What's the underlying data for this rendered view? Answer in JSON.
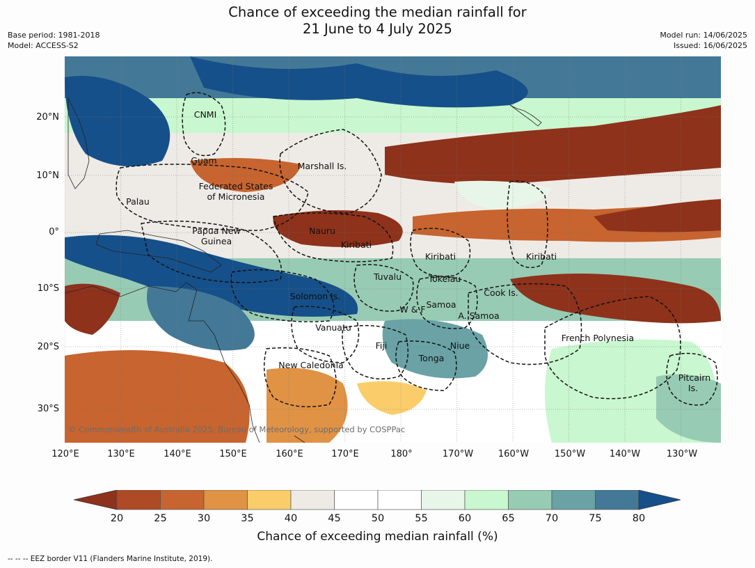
{
  "title": {
    "line1": "Chance of exceeding the median rainfall for",
    "line2": "21 June to 4 July 2025"
  },
  "meta": {
    "base_period": "Base period: 1981-2018",
    "model": "Model: ACCESS-S2",
    "model_run": "Model run: 14/06/2025",
    "issued": "Issued: 16/06/2025"
  },
  "axes": {
    "lat_labels": [
      "20°N",
      "10°N",
      "0°",
      "10°S",
      "20°S",
      "30°S"
    ],
    "lon_labels": [
      "120°E",
      "130°E",
      "140°E",
      "150°E",
      "160°E",
      "170°E",
      "180°",
      "170°W",
      "160°W",
      "150°W",
      "140°W",
      "130°W"
    ]
  },
  "regions": [
    "CNMI",
    "Guam",
    "Marshall Is.",
    "Federated States",
    "of Micronesia",
    "Palau",
    "Papua New",
    "Guinea",
    "Nauru",
    "Kiribati",
    "Kiribati",
    "Kiribati",
    "Tuvalu",
    "Tokelau",
    "Cook Is.",
    "Solomon Is.",
    "W & F",
    "Samoa",
    "A. Samoa",
    "Vanuatu",
    "Fiji",
    "Niue",
    "French Polynesia",
    "Tonga",
    "New Caledonia",
    "Pitcairn",
    "Is."
  ],
  "copyright": "© Commonwealth of Australia 2025, Bureau of Meteorology, supported by COSPPac",
  "colorbar": {
    "ticks": [
      "20",
      "25",
      "30",
      "35",
      "40",
      "45",
      "50",
      "55",
      "60",
      "65",
      "70",
      "75",
      "80"
    ],
    "colors": {
      "under": "#8e321c",
      "bins": [
        "#ae4a25",
        "#c7642f",
        "#e09245",
        "#fbcd6a",
        "#eeebe6",
        "#ffffff",
        "#ffffff",
        "#e8f6e9",
        "#c9f7cf",
        "#98cbb3",
        "#6aa2a6",
        "#437997"
      ],
      "over": "#16508a"
    },
    "label": "Chance of exceeding median rainfall (%)"
  },
  "footnote": "-- -- -- EEZ border V11 (Flanders Marine Institute, 2019)."
}
